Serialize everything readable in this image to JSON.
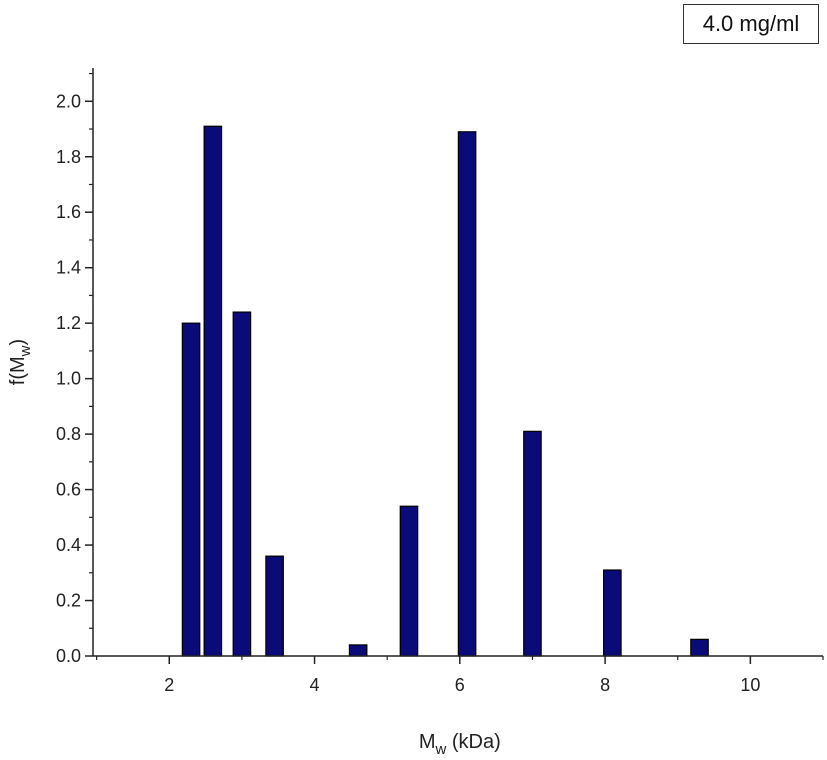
{
  "annotation": "4.0 mg/ml",
  "chart_data": {
    "type": "bar",
    "title": "",
    "xlabel": {
      "main": "M",
      "sub": "w",
      "suffix": " (kDa)"
    },
    "ylabel": {
      "main": "f(M",
      "sub": "w",
      "suffix": ")"
    },
    "xlim": [
      0.95,
      11.0
    ],
    "ylim": [
      0.0,
      2.12
    ],
    "xticks": [
      2,
      4,
      6,
      8,
      10
    ],
    "yticks": [
      0.0,
      0.2,
      0.4,
      0.6,
      0.8,
      1.0,
      1.2,
      1.4,
      1.6,
      1.8,
      2.0
    ],
    "xtick_labels": [
      "2",
      "4",
      "6",
      "8",
      "10"
    ],
    "ytick_labels": [
      "0.0",
      "0.2",
      "0.4",
      "0.6",
      "0.8",
      "1.0",
      "1.2",
      "1.4",
      "1.6",
      "1.8",
      "2.0"
    ],
    "bar_width": 0.24,
    "bar_color": "#0a0a78",
    "grid": false,
    "x": [
      2.3,
      2.6,
      3.0,
      3.45,
      4.6,
      5.3,
      6.1,
      7.0,
      8.1,
      9.3
    ],
    "values": [
      1.2,
      1.91,
      1.24,
      0.36,
      0.04,
      0.54,
      1.89,
      0.81,
      0.31,
      0.06
    ]
  }
}
